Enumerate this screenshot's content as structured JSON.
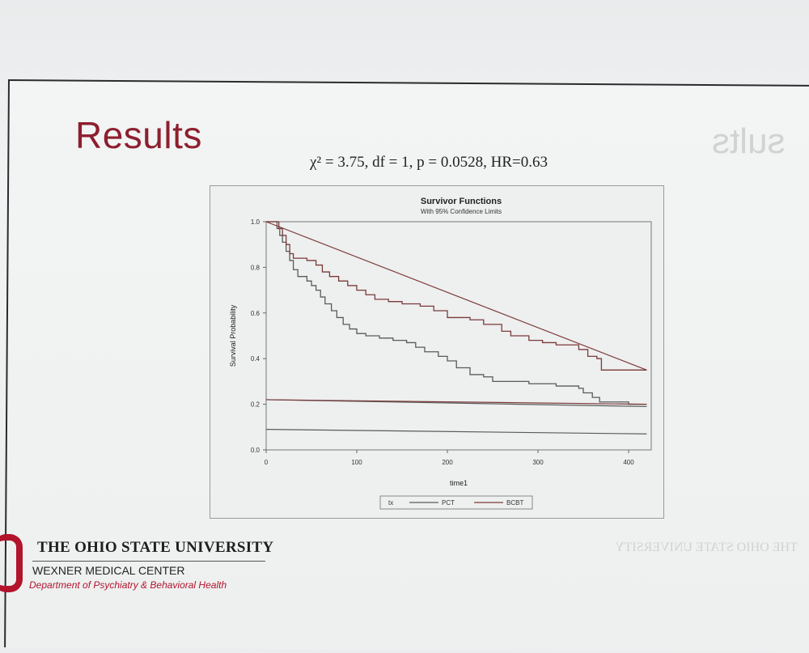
{
  "slide": {
    "title": "Results",
    "stats": "χ² = 3.75, df = 1, p = 0.0528, HR=0.63",
    "ghost_title": "sults",
    "ghost_footer": "THE OHIO STATE UNIVERSITY"
  },
  "footer": {
    "university": "THE OHIO STATE UNIVERSITY",
    "center": "WEXNER MEDICAL CENTER",
    "department": "Department of Psychiatry & Behavioral Health"
  },
  "chart_data": {
    "type": "line",
    "title": "Survivor Functions",
    "subtitle": "With 95% Confidence Limits",
    "xlabel": "time1",
    "ylabel": "Survival Probability",
    "xlim": [
      0,
      425
    ],
    "ylim": [
      0,
      1
    ],
    "x_ticks": [
      0,
      100,
      200,
      300,
      400
    ],
    "y_ticks": [
      0.0,
      0.2,
      0.4,
      0.6,
      0.8,
      1.0
    ],
    "y_tick_labels": [
      "0.0",
      "0.2",
      "0.4",
      "0.6",
      "0.8",
      "1.0"
    ],
    "legend_title": "tx",
    "legend_position": "bottom",
    "grid": false,
    "series": [
      {
        "name": "PCT",
        "color": "#5a5a5a",
        "steps": [
          [
            0,
            1.0
          ],
          [
            8,
            1.0
          ],
          [
            12,
            0.97
          ],
          [
            15,
            0.94
          ],
          [
            18,
            0.91
          ],
          [
            22,
            0.87
          ],
          [
            26,
            0.83
          ],
          [
            30,
            0.79
          ],
          [
            35,
            0.76
          ],
          [
            45,
            0.74
          ],
          [
            50,
            0.72
          ],
          [
            55,
            0.7
          ],
          [
            60,
            0.67
          ],
          [
            65,
            0.64
          ],
          [
            72,
            0.61
          ],
          [
            78,
            0.58
          ],
          [
            85,
            0.55
          ],
          [
            92,
            0.53
          ],
          [
            100,
            0.51
          ],
          [
            110,
            0.5
          ],
          [
            125,
            0.49
          ],
          [
            140,
            0.48
          ],
          [
            155,
            0.47
          ],
          [
            165,
            0.45
          ],
          [
            175,
            0.43
          ],
          [
            190,
            0.41
          ],
          [
            200,
            0.39
          ],
          [
            210,
            0.36
          ],
          [
            225,
            0.33
          ],
          [
            240,
            0.32
          ],
          [
            250,
            0.3
          ],
          [
            260,
            0.3
          ],
          [
            290,
            0.29
          ],
          [
            320,
            0.28
          ],
          [
            345,
            0.27
          ],
          [
            350,
            0.25
          ],
          [
            360,
            0.23
          ],
          [
            368,
            0.21
          ],
          [
            380,
            0.21
          ],
          [
            400,
            0.2
          ],
          [
            420,
            0.2
          ]
        ],
        "lower_limit": [
          [
            0,
            0.09
          ],
          [
            420,
            0.07
          ]
        ],
        "upper_limit": [
          [
            0,
            0.22
          ],
          [
            420,
            0.19
          ]
        ]
      },
      {
        "name": "BCBT",
        "color": "#7a3a3a",
        "steps": [
          [
            0,
            1.0
          ],
          [
            8,
            1.0
          ],
          [
            14,
            0.97
          ],
          [
            18,
            0.94
          ],
          [
            22,
            0.9
          ],
          [
            26,
            0.86
          ],
          [
            30,
            0.84
          ],
          [
            40,
            0.84
          ],
          [
            45,
            0.83
          ],
          [
            55,
            0.81
          ],
          [
            62,
            0.78
          ],
          [
            70,
            0.76
          ],
          [
            80,
            0.74
          ],
          [
            90,
            0.72
          ],
          [
            100,
            0.7
          ],
          [
            110,
            0.68
          ],
          [
            120,
            0.66
          ],
          [
            135,
            0.65
          ],
          [
            150,
            0.64
          ],
          [
            170,
            0.63
          ],
          [
            185,
            0.61
          ],
          [
            200,
            0.58
          ],
          [
            225,
            0.57
          ],
          [
            240,
            0.55
          ],
          [
            260,
            0.52
          ],
          [
            270,
            0.5
          ],
          [
            290,
            0.48
          ],
          [
            305,
            0.47
          ],
          [
            320,
            0.46
          ],
          [
            345,
            0.44
          ],
          [
            355,
            0.41
          ],
          [
            365,
            0.4
          ],
          [
            370,
            0.35
          ],
          [
            390,
            0.35
          ],
          [
            415,
            0.35
          ],
          [
            420,
            0.35
          ]
        ],
        "lower_limit": [
          [
            0,
            0.22
          ],
          [
            420,
            0.2
          ]
        ],
        "upper_limit": [
          [
            0,
            1.0
          ],
          [
            420,
            0.35
          ]
        ]
      }
    ]
  }
}
